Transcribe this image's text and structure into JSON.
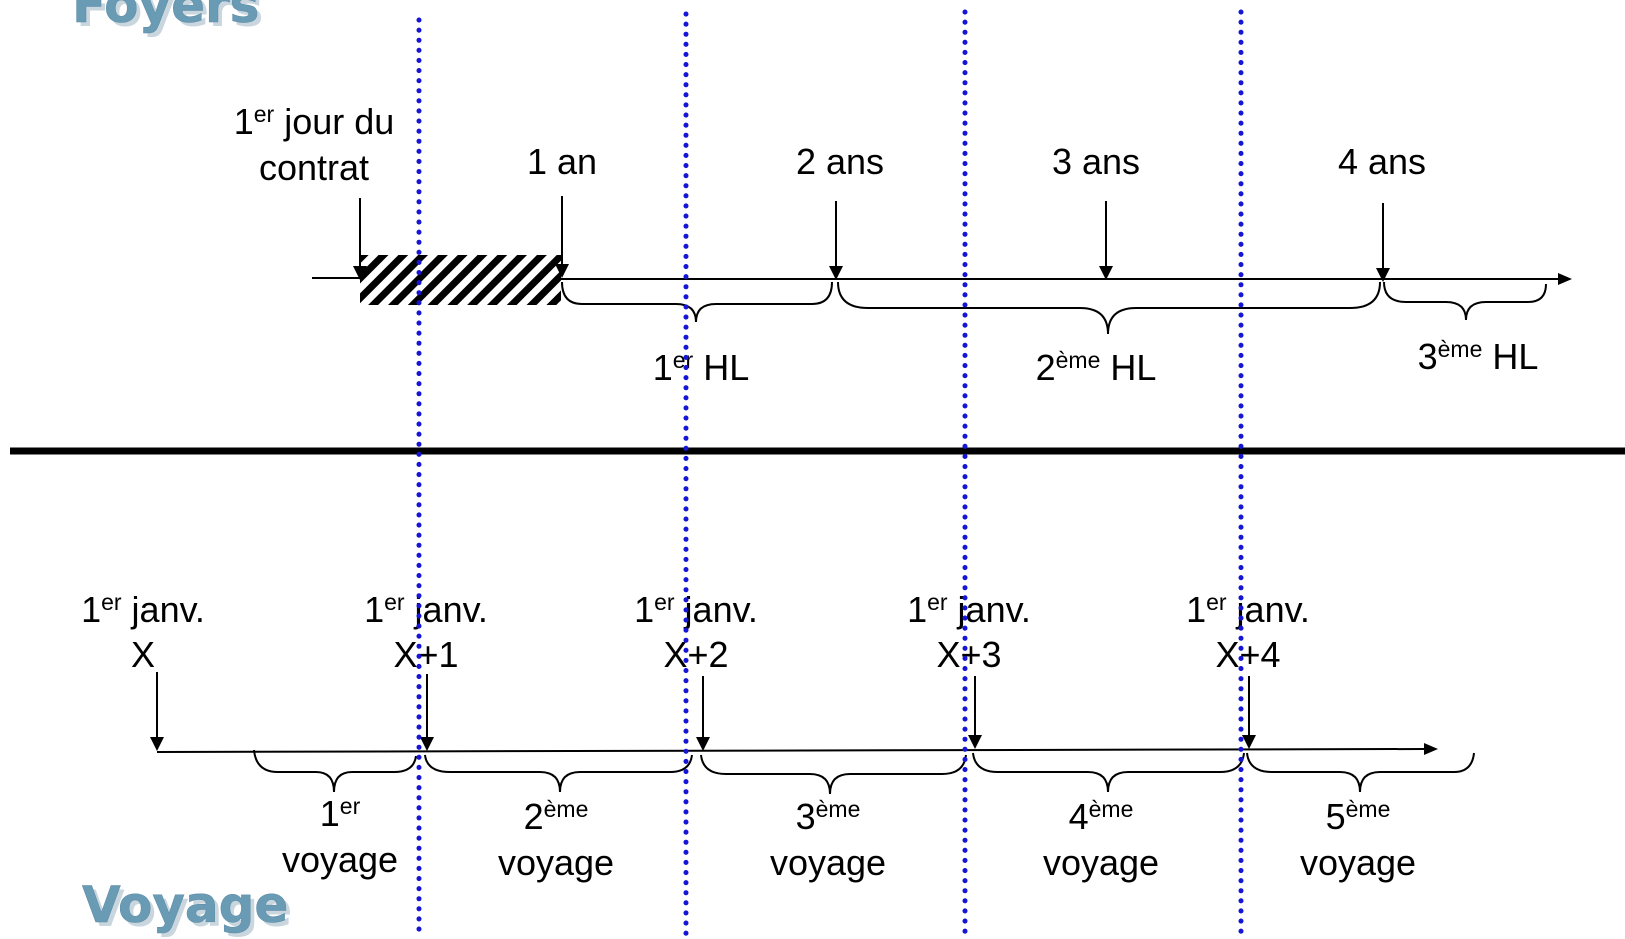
{
  "titles": {
    "top": "Foyers",
    "bottom": "Voyage"
  },
  "colors": {
    "title": "#6a9bb5",
    "dotted_line": "#1515d6",
    "line": "#000000",
    "background": "#ffffff"
  },
  "foyers": {
    "start_label": {
      "pre": "1",
      "sup": "er",
      "post": " jour du",
      "line2": "contrat"
    },
    "year_labels": [
      "1 an",
      "2 ans",
      "3 ans",
      "4 ans"
    ],
    "periods": [
      {
        "num": "1",
        "sup": "er",
        "text": " HL"
      },
      {
        "num": "2",
        "sup": "ème",
        "text": " HL"
      },
      {
        "num": "3",
        "sup": "ème",
        "text": " HL"
      }
    ]
  },
  "voyage": {
    "dates": [
      {
        "num": "1",
        "sup": "er",
        "text": " janv.",
        "year": "X"
      },
      {
        "num": "1",
        "sup": "er",
        "text": " janv.",
        "year": "X+1"
      },
      {
        "num": "1",
        "sup": "er",
        "text": " janv.",
        "year": "X+2"
      },
      {
        "num": "1",
        "sup": "er",
        "text": " janv.",
        "year": "X+3"
      },
      {
        "num": "1",
        "sup": "er",
        "text": " janv.",
        "year": "X+4"
      }
    ],
    "trips": [
      {
        "num": "1",
        "sup": "er",
        "text": "voyage"
      },
      {
        "num": "2",
        "sup": "ème",
        "text": "voyage"
      },
      {
        "num": "3",
        "sup": "ème",
        "text": "voyage"
      },
      {
        "num": "4",
        "sup": "ème",
        "text": "voyage"
      },
      {
        "num": "5",
        "sup": "ème",
        "text": "voyage"
      }
    ]
  }
}
